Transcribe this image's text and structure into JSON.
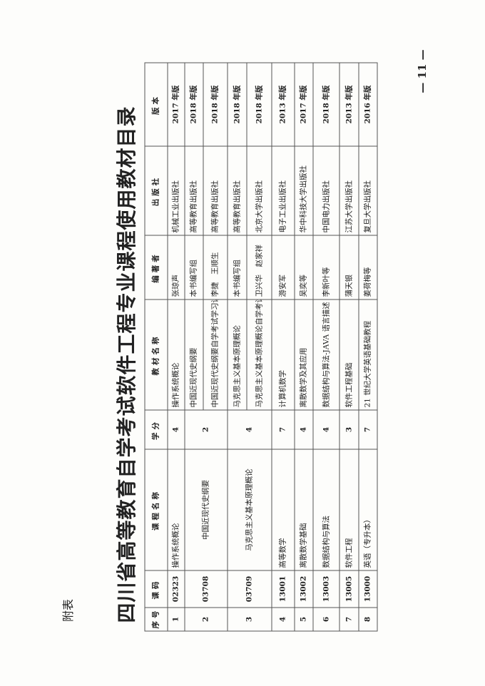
{
  "label": "附表",
  "title": "四川省高等教育自学考试软件工程专业课程使用教材目录",
  "page_number": "— 11 —",
  "table": {
    "headers": [
      "序号",
      "课码",
      "课程名称",
      "学分",
      "教材名称",
      "编著者",
      "出版社",
      "版本"
    ],
    "rows": [
      {
        "no": "1",
        "code": "02323",
        "course": "操作系统概论",
        "credit": "4",
        "books": [
          {
            "name": "操作系统概论",
            "author": "张琼声",
            "publisher": "机械工业出版社",
            "edition": "2017 年版"
          }
        ]
      },
      {
        "no": "2",
        "code": "03708",
        "course": "中国近现代史纲要",
        "credit": "2",
        "books": [
          {
            "name": "中国近现代史纲要",
            "author": "本书编写组",
            "publisher": "高等教育出版社",
            "edition": "2018 年版"
          },
          {
            "name": "中国近现代史纲要自学考试学习读本",
            "author": "李捷　王顺生",
            "publisher": "高等教育出版社",
            "edition": "2018 年版"
          }
        ]
      },
      {
        "no": "3",
        "code": "03709",
        "course": "马克思主义基本原理概论",
        "credit": "4",
        "books": [
          {
            "name": "马克思主义基本原理概论",
            "author": "本书编写组",
            "publisher": "高等教育出版社",
            "edition": "2018 年版"
          },
          {
            "name": "马克思主义基本原理概论自学考试学习读本",
            "author": "卫兴华　赵家祥",
            "publisher": "北京大学出版社",
            "edition": "2018 年版"
          }
        ]
      },
      {
        "no": "4",
        "code": "13001",
        "course": "高等数学",
        "credit": "7",
        "books": [
          {
            "name": "计算机数学",
            "author": "游安军",
            "publisher": "电子工业出版社",
            "edition": "2013 年版"
          }
        ]
      },
      {
        "no": "5",
        "code": "13002",
        "course": "离散数学基础",
        "credit": "4",
        "books": [
          {
            "name": "离散数学及其应用",
            "author": "吴奕等",
            "publisher": "华中科技大学出版社",
            "edition": "2017 年版"
          }
        ]
      },
      {
        "no": "6",
        "code": "13003",
        "course": "数据结构与算法",
        "credit": "4",
        "books": [
          {
            "name": "数据结构与算法-JAVA 语言描述",
            "author": "李新叶等",
            "publisher": "中国电力出版社",
            "edition": "2018 年版"
          }
        ]
      },
      {
        "no": "7",
        "code": "13005",
        "course": "软件工程",
        "credit": "3",
        "books": [
          {
            "name": "软件工程基础",
            "author": "蒲天银",
            "publisher": "江苏大学出版社",
            "edition": "2013 年版"
          }
        ]
      },
      {
        "no": "8",
        "code": "13000",
        "course": "英语（专升本）",
        "credit": "7",
        "books": [
          {
            "name": "21 世纪大学英语基础教程",
            "author": "姜荷梅等",
            "publisher": "复旦大学出版社",
            "edition": "2016 年版"
          }
        ]
      }
    ]
  }
}
